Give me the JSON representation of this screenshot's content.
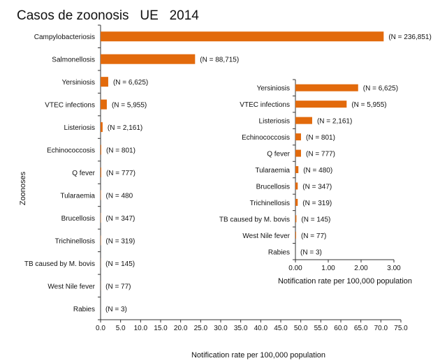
{
  "chart_data": [
    {
      "type": "bar",
      "orientation": "horizontal",
      "title": "Casos de zoonosis   UE   2014",
      "xlabel": "Notification rate per 100,000 population",
      "ylabel": "Zoonoses",
      "xlim": [
        0,
        75
      ],
      "xticks": [
        "0.0",
        "5.0",
        "10.0",
        "15.0",
        "20.0",
        "25.0",
        "30.0",
        "35.0",
        "40.0",
        "45.0",
        "50.0",
        "55.0",
        "60.0",
        "65.0",
        "70.0",
        "75.0"
      ],
      "grid": false,
      "color": "#e26a0c",
      "categories": [
        "Campylobacteriosis",
        "Salmonellosis",
        "Yersiniosis",
        "VTEC infections",
        "Listeriosis",
        "Echinococcosis",
        "Q fever",
        "Tularaemia",
        "Brucellosis",
        "Trichinellosis",
        "TB caused by M. bovis",
        "West Nile fever",
        "Rabies"
      ],
      "values": [
        70.7,
        23.6,
        1.91,
        1.56,
        0.51,
        0.17,
        0.17,
        0.09,
        0.07,
        0.07,
        0.03,
        0.02,
        0.0
      ],
      "labels": [
        "(N = 236,851)",
        "(N = 88,715)",
        "(N = 6,625)",
        "(N = 5,955)",
        "(N = 2,161)",
        "(N = 801)",
        "(N = 777)",
        "(N = 480",
        "(N = 347)",
        "(N = 319)",
        "(N = 145)",
        "(N = 77)",
        "(N = 3)"
      ]
    },
    {
      "type": "bar",
      "orientation": "horizontal",
      "xlabel": "Notification rate per 100,000 population",
      "xlim": [
        0,
        3
      ],
      "xticks": [
        "0.00",
        "1.00",
        "2.00",
        "3.00"
      ],
      "grid": false,
      "color": "#e26a0c",
      "categories": [
        "Yersiniosis",
        "VTEC infections",
        "Listeriosis",
        "Echinococcosis",
        "Q fever",
        "Tularaemia",
        "Brucellosis",
        "Trichinellosis",
        "TB caused by M. bovis",
        "West Nile fever",
        "Rabies"
      ],
      "values": [
        1.91,
        1.56,
        0.51,
        0.17,
        0.17,
        0.09,
        0.07,
        0.07,
        0.03,
        0.02,
        0.0
      ],
      "labels": [
        "(N = 6,625)",
        "(N = 5,955)",
        "(N = 2,161)",
        "(N = 801)",
        "(N = 777)",
        "(N = 480)",
        "(N = 347)",
        "(N = 319)",
        "(N = 145)",
        "(N = 77)",
        "(N = 3)"
      ]
    }
  ]
}
